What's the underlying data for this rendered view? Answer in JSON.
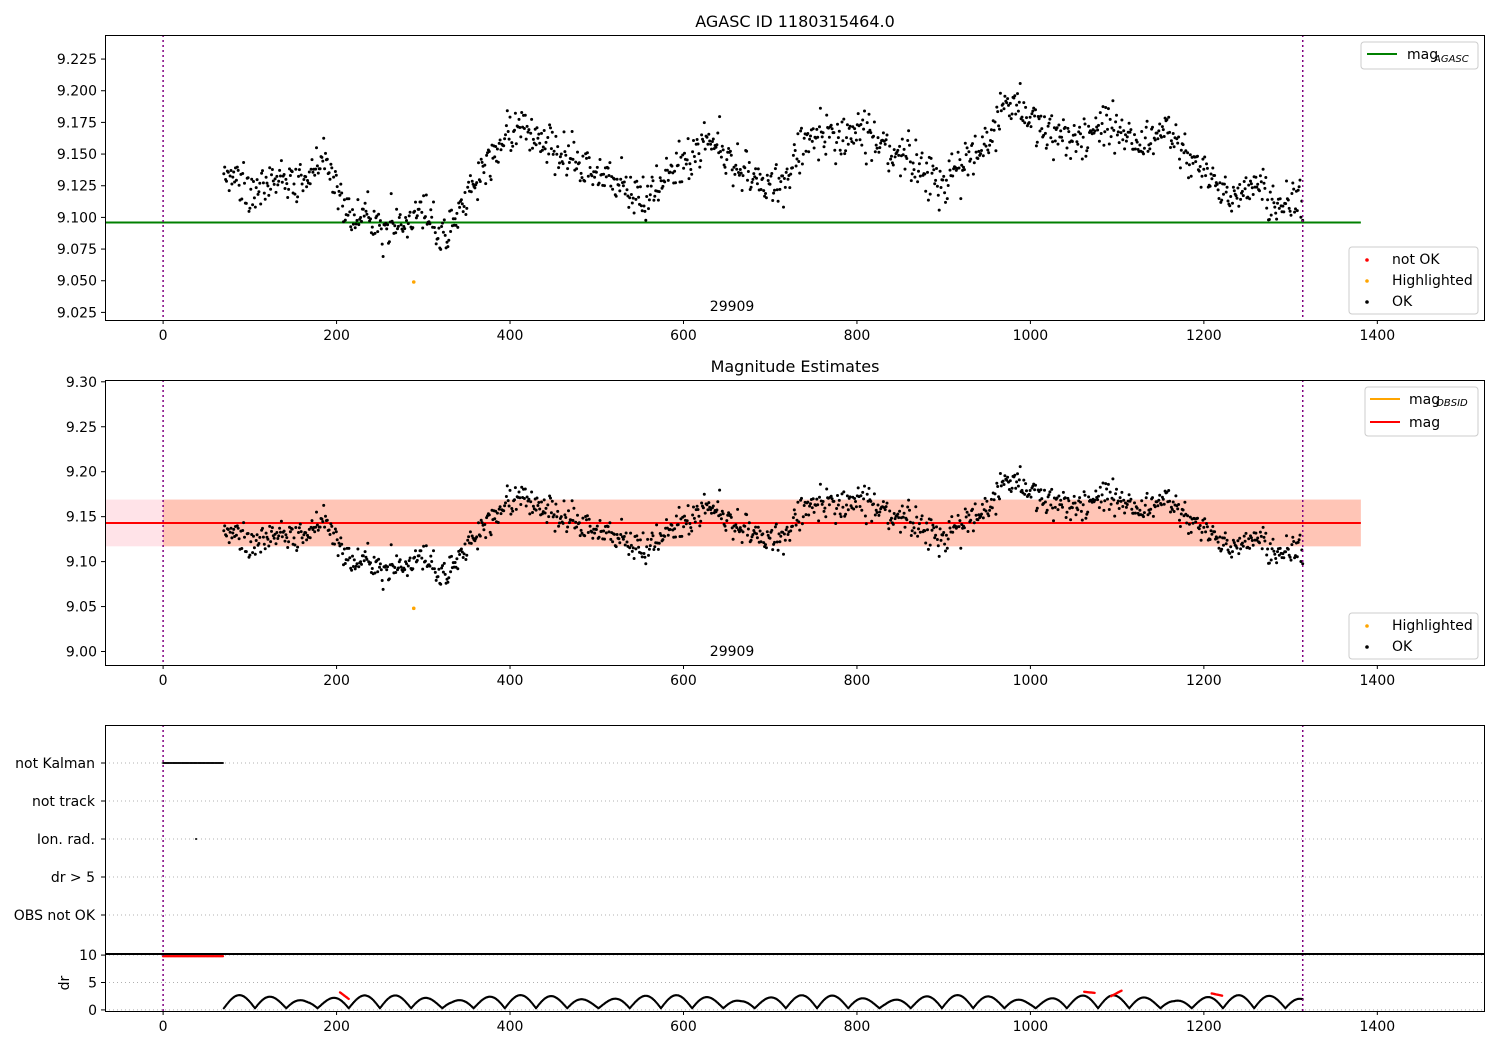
{
  "chart_data": [
    {
      "type": "scatter",
      "title": "AGASC ID 1180315464.0",
      "xlim": [
        -67,
        1523
      ],
      "ylim": [
        9.019,
        9.244
      ],
      "xticks": [
        0,
        200,
        400,
        600,
        800,
        1000,
        1200,
        1400
      ],
      "xtick_labels": [
        "0",
        "200",
        "400",
        "600",
        "800",
        "1000",
        "1200",
        "1400"
      ],
      "yticks": [
        9.025,
        9.05,
        9.075,
        9.1,
        9.125,
        9.15,
        9.175,
        9.2,
        9.225
      ],
      "ytick_labels": [
        "9.025",
        "9.050",
        "9.075",
        "9.100",
        "9.125",
        "9.150",
        "9.175",
        "9.200",
        "9.225"
      ],
      "obsid_label": "29909",
      "obsid_label_x": 656,
      "obs_boundaries": [
        0,
        1314
      ],
      "hlines": [
        {
          "name": "mag_AGASC",
          "y": 9.096,
          "x": [
            -67,
            1381
          ],
          "color": "#008000"
        }
      ],
      "highlighted_points": [
        {
          "x": 289,
          "y": 9.049
        }
      ],
      "trend_knots": {
        "x": [
          70,
          100,
          140,
          165,
          190,
          210,
          240,
          260,
          280,
          300,
          320,
          340,
          360,
          380,
          410,
          440,
          470,
          500,
          530,
          560,
          590,
          620,
          650,
          680,
          700,
          730,
          760,
          790,
          810,
          840,
          870,
          900,
          930,
          960,
          980,
          1010,
          1040,
          1070,
          1100,
          1130,
          1160,
          1190,
          1220,
          1250,
          1280,
          1314
        ],
        "y": [
          9.132,
          9.125,
          9.128,
          9.133,
          9.14,
          9.11,
          9.097,
          9.094,
          9.1,
          9.1,
          9.088,
          9.1,
          9.125,
          9.155,
          9.17,
          9.165,
          9.145,
          9.14,
          9.118,
          9.12,
          9.14,
          9.16,
          9.15,
          9.135,
          9.115,
          9.148,
          9.17,
          9.16,
          9.168,
          9.155,
          9.14,
          9.13,
          9.145,
          9.175,
          9.19,
          9.175,
          9.155,
          9.168,
          9.172,
          9.16,
          9.165,
          9.14,
          9.125,
          9.12,
          9.118,
          9.11
        ]
      },
      "scatter_range_x": [
        70,
        1314
      ],
      "n_points": 1200,
      "legends": [
        {
          "placement": "upper-right",
          "entries": [
            {
              "label": "mag",
              "subscript": "AGASC",
              "marker": "line",
              "color": "#008000"
            }
          ]
        },
        {
          "placement": "lower-right",
          "entries": [
            {
              "label": "not OK",
              "marker": "dot",
              "color": "#ff0000"
            },
            {
              "label": "Highlighted",
              "marker": "dot",
              "color": "#ffa500"
            },
            {
              "label": "OK",
              "marker": "dot",
              "color": "#000000"
            }
          ]
        }
      ]
    },
    {
      "type": "scatter",
      "title": "Magnitude Estimates",
      "xlim": [
        -67,
        1523
      ],
      "ylim": [
        8.985,
        9.302
      ],
      "xticks": [
        0,
        200,
        400,
        600,
        800,
        1000,
        1200,
        1400
      ],
      "xtick_labels": [
        "0",
        "200",
        "400",
        "600",
        "800",
        "1000",
        "1200",
        "1400"
      ],
      "yticks": [
        9.0,
        9.05,
        9.1,
        9.15,
        9.2,
        9.25,
        9.3
      ],
      "ytick_labels": [
        "9.00",
        "9.05",
        "9.10",
        "9.15",
        "9.20",
        "9.25",
        "9.30"
      ],
      "obsid_label": "29909",
      "obsid_label_x": 656,
      "obs_boundaries": [
        0,
        1314
      ],
      "hlines": [
        {
          "name": "mag",
          "y": 9.143,
          "x": [
            -67,
            1381
          ],
          "color": "#ff0000"
        }
      ],
      "bands": [
        {
          "name": "mag band",
          "y0": 9.117,
          "y1": 9.169,
          "x": [
            -67,
            1381
          ],
          "color": "#ffc0cb"
        },
        {
          "name": "mag_OBSID band",
          "y0": 9.117,
          "y1": 9.169,
          "x": [
            0,
            1381
          ],
          "color": "#ffa07a"
        }
      ],
      "highlighted_points": [
        {
          "x": 289,
          "y": 9.048
        }
      ],
      "legends": [
        {
          "placement": "upper-right",
          "entries": [
            {
              "label": "mag",
              "subscript": "OBSID",
              "marker": "line",
              "color": "#ffa500"
            },
            {
              "label": "mag",
              "marker": "line",
              "color": "#ff0000"
            }
          ]
        },
        {
          "placement": "lower-right",
          "entries": [
            {
              "label": "Highlighted",
              "marker": "dot",
              "color": "#ffa500"
            },
            {
              "label": "OK",
              "marker": "dot",
              "color": "#000000"
            }
          ]
        }
      ]
    },
    {
      "type": "scatter",
      "title": "",
      "xlim": [
        -67,
        1523
      ],
      "categories": [
        "not Kalman",
        "not track",
        "Ion. rad.",
        "dr > 5",
        "OBS not OK"
      ],
      "flags": [
        {
          "category": "not Kalman",
          "x_range": [
            0,
            70
          ]
        },
        {
          "category": "Ion. rad.",
          "x": [
            38
          ]
        }
      ],
      "obs_boundaries": [
        0,
        1314
      ]
    },
    {
      "type": "scatter",
      "title": "",
      "ylabel": "dr",
      "xlim": [
        -67,
        1523
      ],
      "ylim": [
        -0.2,
        10.2
      ],
      "xticks": [
        0,
        200,
        400,
        600,
        800,
        1000,
        1200,
        1400
      ],
      "xtick_labels": [
        "0",
        "200",
        "400",
        "600",
        "800",
        "1000",
        "1200",
        "1400"
      ],
      "yticks": [
        0,
        5,
        10
      ],
      "ytick_labels": [
        "0",
        "5",
        "10"
      ],
      "obs_boundaries": [
        0,
        1314
      ],
      "clipped_dr": {
        "x_range": [
          0,
          70
        ],
        "y": 9.8
      },
      "dr_arcs": {
        "x_range": [
          70,
          1314
        ],
        "period": 36,
        "min": 0.3,
        "max": 2.4
      },
      "red_segments": [
        [
          204,
          214,
          3.2,
          2.0
        ],
        [
          1062,
          1074,
          3.3,
          3.1
        ],
        [
          1093,
          1105,
          2.5,
          3.5
        ],
        [
          1209,
          1221,
          3.0,
          2.6
        ]
      ]
    }
  ]
}
